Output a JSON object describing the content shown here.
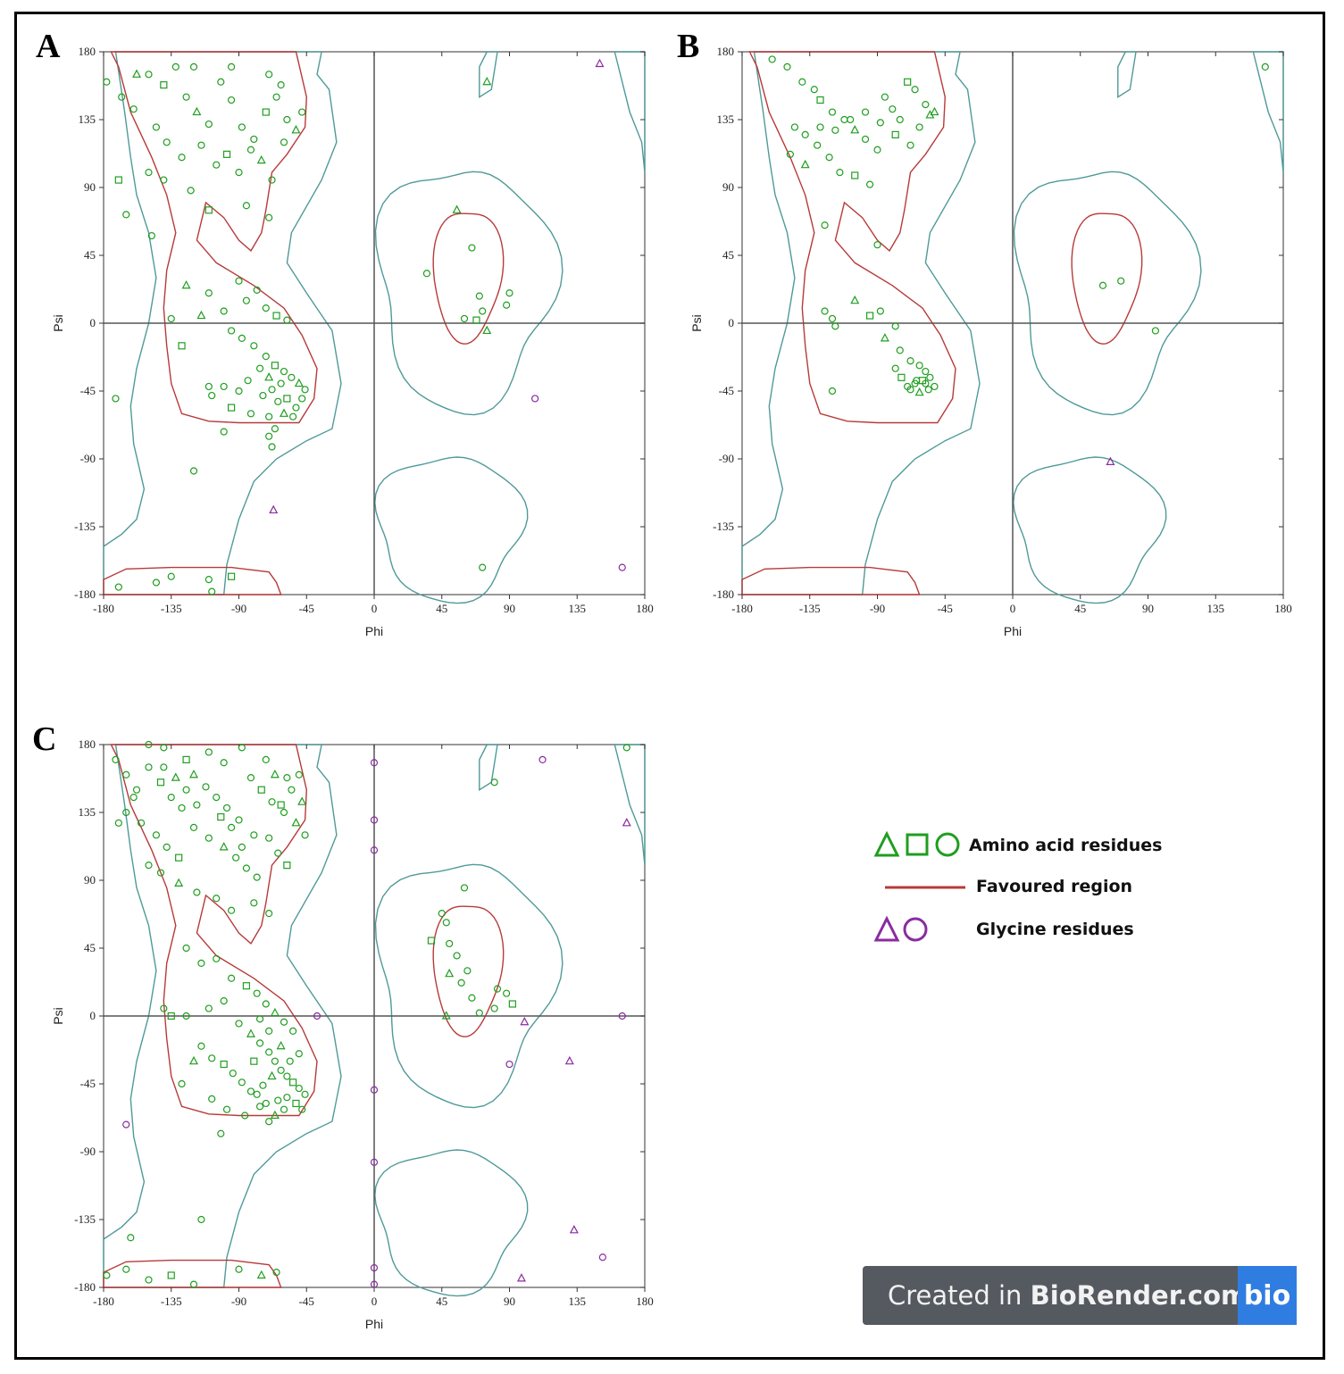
{
  "panels": {
    "A": {
      "letter": "A"
    },
    "B": {
      "letter": "B"
    },
    "C": {
      "letter": "C"
    }
  },
  "colors": {
    "residue": "#1f9e1f",
    "glycine": "#8a2ba0",
    "favoured": "#b83a3a",
    "allowed": "#4f9a98",
    "axis": "#555555"
  },
  "chart_data": [
    {
      "type": "scatter",
      "panel": "A",
      "xlabel": "Phi",
      "ylabel": "Psi",
      "xlim": [
        -180,
        180
      ],
      "ylim": [
        -180,
        180
      ],
      "xticks": [
        "-180",
        "-135",
        "-90",
        "-45",
        "0",
        "45",
        "90",
        "135",
        "180"
      ],
      "yticks": [
        "180",
        "135",
        "90",
        "45",
        "0",
        "-45",
        "-90",
        "-135",
        "-180"
      ],
      "residues": [
        [
          -178,
          160
        ],
        [
          -168,
          150
        ],
        [
          -160,
          142
        ],
        [
          -150,
          165
        ],
        [
          -140,
          158
        ],
        [
          -132,
          170
        ],
        [
          -125,
          150
        ],
        [
          -118,
          140
        ],
        [
          -110,
          132
        ],
        [
          -102,
          160
        ],
        [
          -95,
          148
        ],
        [
          -88,
          130
        ],
        [
          -80,
          122
        ],
        [
          -72,
          140
        ],
        [
          -65,
          150
        ],
        [
          -58,
          135
        ],
        [
          -52,
          128
        ],
        [
          -145,
          130
        ],
        [
          -138,
          120
        ],
        [
          -128,
          110
        ],
        [
          -115,
          118
        ],
        [
          -105,
          105
        ],
        [
          -98,
          112
        ],
        [
          -90,
          100
        ],
        [
          -82,
          115
        ],
        [
          -75,
          108
        ],
        [
          -68,
          95
        ],
        [
          -60,
          120
        ],
        [
          -150,
          100
        ],
        [
          -140,
          95
        ],
        [
          -122,
          88
        ],
        [
          -110,
          75
        ],
        [
          -85,
          78
        ],
        [
          -70,
          70
        ],
        [
          -158,
          165
        ],
        [
          -120,
          170
        ],
        [
          -95,
          170
        ],
        [
          -70,
          165
        ],
        [
          -62,
          158
        ],
        [
          -48,
          140
        ],
        [
          -170,
          95
        ],
        [
          -165,
          72
        ],
        [
          -148,
          58
        ],
        [
          -125,
          25
        ],
        [
          -110,
          20
        ],
        [
          -90,
          28
        ],
        [
          -85,
          15
        ],
        [
          -78,
          22
        ],
        [
          -72,
          10
        ],
        [
          -65,
          5
        ],
        [
          -58,
          2
        ],
        [
          -100,
          8
        ],
        [
          -115,
          5
        ],
        [
          -135,
          3
        ],
        [
          -95,
          -5
        ],
        [
          -88,
          -10
        ],
        [
          -80,
          -15
        ],
        [
          -72,
          -22
        ],
        [
          -66,
          -28
        ],
        [
          -60,
          -32
        ],
        [
          -55,
          -36
        ],
        [
          -50,
          -40
        ],
        [
          -46,
          -44
        ],
        [
          -62,
          -40
        ],
        [
          -68,
          -44
        ],
        [
          -74,
          -48
        ],
        [
          -64,
          -52
        ],
        [
          -58,
          -50
        ],
        [
          -52,
          -56
        ],
        [
          -48,
          -50
        ],
        [
          -70,
          -36
        ],
        [
          -76,
          -30
        ],
        [
          -84,
          -38
        ],
        [
          -90,
          -45
        ],
        [
          -100,
          -42
        ],
        [
          -108,
          -48
        ],
        [
          -95,
          -56
        ],
        [
          -82,
          -60
        ],
        [
          -70,
          -62
        ],
        [
          -60,
          -60
        ],
        [
          -54,
          -62
        ],
        [
          -66,
          -70
        ],
        [
          -70,
          -75
        ],
        [
          -68,
          -82
        ],
        [
          -172,
          -50
        ],
        [
          -128,
          -15
        ],
        [
          -110,
          -42
        ],
        [
          -100,
          -72
        ],
        [
          55,
          75
        ],
        [
          65,
          50
        ],
        [
          35,
          33
        ],
        [
          70,
          18
        ],
        [
          72,
          8
        ],
        [
          60,
          3
        ],
        [
          68,
          2
        ],
        [
          88,
          12
        ],
        [
          90,
          20
        ],
        [
          75,
          -5
        ],
        [
          -120,
          -98
        ],
        [
          -170,
          -175
        ],
        [
          -145,
          -172
        ],
        [
          -135,
          -168
        ],
        [
          -110,
          -170
        ],
        [
          -95,
          -168
        ],
        [
          -108,
          -178
        ],
        [
          72,
          -162
        ],
        [
          75,
          160
        ]
      ],
      "glycine": [
        [
          150,
          172
        ],
        [
          107,
          -50
        ],
        [
          -67,
          -124
        ],
        [
          165,
          -162
        ]
      ]
    },
    {
      "type": "scatter",
      "panel": "B",
      "xlabel": "Phi",
      "ylabel": "Psi",
      "xlim": [
        -180,
        180
      ],
      "ylim": [
        -180,
        180
      ],
      "xticks": [
        "-180",
        "-135",
        "-90",
        "-45",
        "0",
        "45",
        "90",
        "135",
        "180"
      ],
      "yticks": [
        "180",
        "135",
        "90",
        "45",
        "0",
        "-45",
        "-90",
        "-135",
        "-180"
      ],
      "residues": [
        [
          -160,
          175
        ],
        [
          -150,
          170
        ],
        [
          -140,
          160
        ],
        [
          -132,
          155
        ],
        [
          -128,
          148
        ],
        [
          -120,
          140
        ],
        [
          -112,
          135
        ],
        [
          -105,
          128
        ],
        [
          -98,
          122
        ],
        [
          -90,
          115
        ],
        [
          -85,
          150
        ],
        [
          -80,
          142
        ],
        [
          -75,
          135
        ],
        [
          -70,
          160
        ],
        [
          -65,
          155
        ],
        [
          -58,
          145
        ],
        [
          -52,
          140
        ],
        [
          -145,
          130
        ],
        [
          -138,
          125
        ],
        [
          -130,
          118
        ],
        [
          -122,
          110
        ],
        [
          -115,
          100
        ],
        [
          -105,
          98
        ],
        [
          -95,
          92
        ],
        [
          -148,
          112
        ],
        [
          -138,
          105
        ],
        [
          -128,
          130
        ],
        [
          -118,
          128
        ],
        [
          -108,
          135
        ],
        [
          -98,
          140
        ],
        [
          -88,
          133
        ],
        [
          -78,
          125
        ],
        [
          -68,
          118
        ],
        [
          -62,
          130
        ],
        [
          -55,
          138
        ],
        [
          -125,
          65
        ],
        [
          -90,
          52
        ],
        [
          -125,
          8
        ],
        [
          -120,
          3
        ],
        [
          -118,
          -2
        ],
        [
          -95,
          5
        ],
        [
          -88,
          8
        ],
        [
          -78,
          -2
        ],
        [
          -85,
          -10
        ],
        [
          -75,
          -18
        ],
        [
          -68,
          -25
        ],
        [
          -62,
          -28
        ],
        [
          -58,
          -32
        ],
        [
          -55,
          -36
        ],
        [
          -60,
          -38
        ],
        [
          -65,
          -40
        ],
        [
          -68,
          -44
        ],
        [
          -62,
          -46
        ],
        [
          -56,
          -44
        ],
        [
          -52,
          -42
        ],
        [
          -58,
          -40
        ],
        [
          -64,
          -38
        ],
        [
          -70,
          -42
        ],
        [
          -74,
          -36
        ],
        [
          -78,
          -30
        ],
        [
          -120,
          -45
        ],
        [
          -105,
          15
        ],
        [
          60,
          25
        ],
        [
          72,
          28
        ],
        [
          95,
          -5
        ],
        [
          168,
          170
        ]
      ],
      "glycine": [
        [
          65,
          -92
        ]
      ]
    },
    {
      "type": "scatter",
      "panel": "C",
      "xlabel": "Phi",
      "ylabel": "Psi",
      "xlim": [
        -180,
        180
      ],
      "ylim": [
        -180,
        180
      ],
      "xticks": [
        "-180",
        "-135",
        "-90",
        "-45",
        "0",
        "45",
        "90",
        "135",
        "180"
      ],
      "yticks": [
        "180",
        "135",
        "90",
        "45",
        "0",
        "-45",
        "-90",
        "-135",
        "-180"
      ],
      "residues": [
        [
          -172,
          170
        ],
        [
          -165,
          160
        ],
        [
          -158,
          150
        ],
        [
          -150,
          165
        ],
        [
          -142,
          155
        ],
        [
          -135,
          145
        ],
        [
          -128,
          138
        ],
        [
          -120,
          160
        ],
        [
          -112,
          152
        ],
        [
          -105,
          145
        ],
        [
          -98,
          138
        ],
        [
          -90,
          130
        ],
        [
          -82,
          158
        ],
        [
          -75,
          150
        ],
        [
          -68,
          142
        ],
        [
          -60,
          135
        ],
        [
          -52,
          128
        ],
        [
          -46,
          120
        ],
        [
          -165,
          135
        ],
        [
          -155,
          128
        ],
        [
          -145,
          120
        ],
        [
          -138,
          112
        ],
        [
          -130,
          105
        ],
        [
          -120,
          125
        ],
        [
          -110,
          118
        ],
        [
          -100,
          112
        ],
        [
          -92,
          105
        ],
        [
          -85,
          98
        ],
        [
          -78,
          92
        ],
        [
          -70,
          118
        ],
        [
          -64,
          108
        ],
        [
          -58,
          100
        ],
        [
          -150,
          100
        ],
        [
          -142,
          95
        ],
        [
          -130,
          88
        ],
        [
          -118,
          82
        ],
        [
          -105,
          78
        ],
        [
          -95,
          70
        ],
        [
          -80,
          75
        ],
        [
          -70,
          68
        ],
        [
          -62,
          140
        ],
        [
          -55,
          150
        ],
        [
          -50,
          160
        ],
        [
          -48,
          142
        ],
        [
          -88,
          178
        ],
        [
          -110,
          175
        ],
        [
          -140,
          178
        ],
        [
          -160,
          145
        ],
        [
          -170,
          128
        ],
        [
          -125,
          170
        ],
        [
          -100,
          168
        ],
        [
          -72,
          170
        ],
        [
          -66,
          160
        ],
        [
          -58,
          158
        ],
        [
          -150,
          180
        ],
        [
          -80,
          120
        ],
        [
          -88,
          112
        ],
        [
          -95,
          125
        ],
        [
          -102,
          132
        ],
        [
          -118,
          140
        ],
        [
          -125,
          150
        ],
        [
          -132,
          158
        ],
        [
          -140,
          165
        ],
        [
          -125,
          45
        ],
        [
          -115,
          35
        ],
        [
          -105,
          38
        ],
        [
          -95,
          25
        ],
        [
          -85,
          20
        ],
        [
          -78,
          15
        ],
        [
          -72,
          8
        ],
        [
          -66,
          2
        ],
        [
          -60,
          -4
        ],
        [
          -54,
          -10
        ],
        [
          -100,
          10
        ],
        [
          -110,
          5
        ],
        [
          -125,
          0
        ],
        [
          -135,
          0
        ],
        [
          -140,
          5
        ],
        [
          -90,
          -5
        ],
        [
          -82,
          -12
        ],
        [
          -76,
          -18
        ],
        [
          -70,
          -24
        ],
        [
          -66,
          -30
        ],
        [
          -62,
          -36
        ],
        [
          -58,
          -40
        ],
        [
          -54,
          -44
        ],
        [
          -50,
          -48
        ],
        [
          -46,
          -52
        ],
        [
          -68,
          -40
        ],
        [
          -74,
          -46
        ],
        [
          -78,
          -52
        ],
        [
          -72,
          -58
        ],
        [
          -64,
          -56
        ],
        [
          -58,
          -54
        ],
        [
          -52,
          -58
        ],
        [
          -48,
          -62
        ],
        [
          -60,
          -62
        ],
        [
          -66,
          -66
        ],
        [
          -70,
          -70
        ],
        [
          -76,
          -60
        ],
        [
          -82,
          -50
        ],
        [
          -88,
          -44
        ],
        [
          -94,
          -38
        ],
        [
          -100,
          -32
        ],
        [
          -108,
          -28
        ],
        [
          -115,
          -20
        ],
        [
          -120,
          -30
        ],
        [
          -128,
          -45
        ],
        [
          -108,
          -55
        ],
        [
          -98,
          -62
        ],
        [
          -86,
          -66
        ],
        [
          -102,
          -78
        ],
        [
          -80,
          -30
        ],
        [
          -56,
          -30
        ],
        [
          -50,
          -25
        ],
        [
          -62,
          -20
        ],
        [
          -70,
          -10
        ],
        [
          -76,
          -2
        ],
        [
          60,
          85
        ],
        [
          45,
          68
        ],
        [
          48,
          62
        ],
        [
          38,
          50
        ],
        [
          50,
          48
        ],
        [
          55,
          40
        ],
        [
          50,
          28
        ],
        [
          58,
          22
        ],
        [
          62,
          30
        ],
        [
          65,
          12
        ],
        [
          82,
          18
        ],
        [
          88,
          15
        ],
        [
          92,
          8
        ],
        [
          80,
          5
        ],
        [
          70,
          2
        ],
        [
          48,
          0
        ],
        [
          -115,
          -135
        ],
        [
          -162,
          -147
        ],
        [
          -178,
          -172
        ],
        [
          -165,
          -168
        ],
        [
          -150,
          -175
        ],
        [
          -135,
          -172
        ],
        [
          -120,
          -178
        ],
        [
          -90,
          -168
        ],
        [
          -75,
          -172
        ],
        [
          -65,
          -170
        ],
        [
          80,
          155
        ],
        [
          168,
          178
        ]
      ],
      "glycine": [
        [
          0,
          168
        ],
        [
          0,
          130
        ],
        [
          0,
          110
        ],
        [
          -38,
          0
        ],
        [
          100,
          -4
        ],
        [
          90,
          -32
        ],
        [
          130,
          -30
        ],
        [
          0,
          -49
        ],
        [
          0,
          -97
        ],
        [
          0,
          -167
        ],
        [
          0,
          -178
        ],
        [
          -165,
          -72
        ],
        [
          168,
          128
        ],
        [
          165,
          0
        ],
        [
          133,
          -142
        ],
        [
          152,
          -160
        ],
        [
          98,
          -174
        ],
        [
          112,
          170
        ]
      ]
    }
  ],
  "legend": {
    "amino_acid_label": "Amino acid residues",
    "favoured_label": "Favoured region",
    "glycine_label": "Glycine residues"
  },
  "badge": {
    "prefix": "Created in ",
    "brand": "BioRender.com",
    "logo": "bio"
  }
}
